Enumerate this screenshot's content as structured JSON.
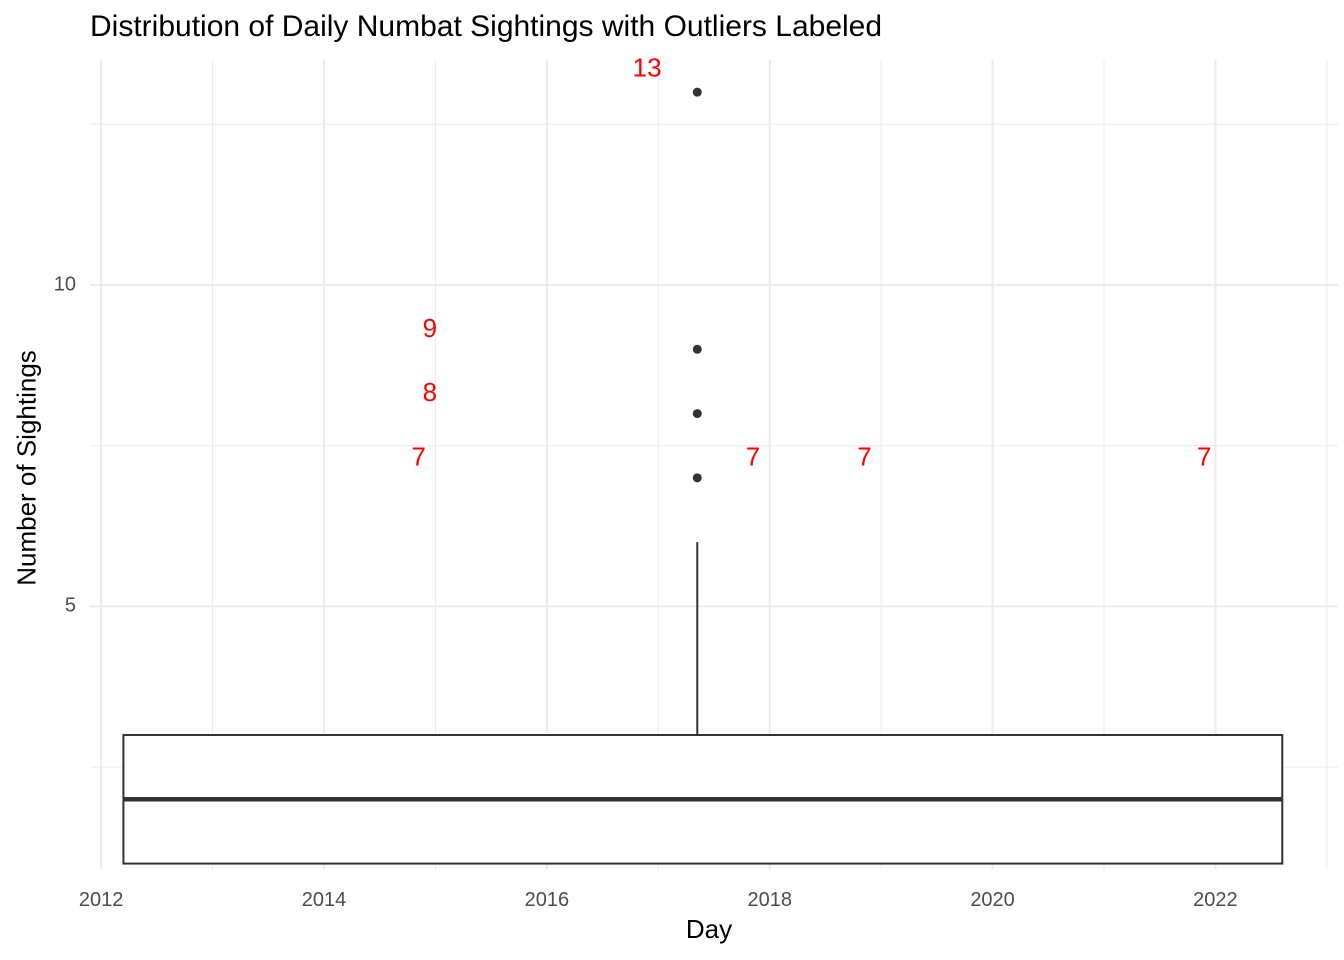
{
  "chart_data": {
    "type": "boxplot",
    "title": "Distribution of Daily Numbat Sightings with Outliers Labeled",
    "xlabel": "Day",
    "ylabel": "Number of Sightings",
    "xlim": [
      2011.9,
      2023.1
    ],
    "ylim": [
      0.9,
      13.5
    ],
    "x_ticks": [
      2012,
      2014,
      2016,
      2018,
      2020,
      2022
    ],
    "x_tick_labels": [
      "2012",
      "2014",
      "2016",
      "2018",
      "2020",
      "2022"
    ],
    "y_ticks": [
      5,
      10
    ],
    "y_tick_labels": [
      "5",
      "10"
    ],
    "box": {
      "x_min": 2012.2,
      "x_max": 2022.6,
      "x_center": 2017.35,
      "lower_quartile": 1,
      "median": 2,
      "upper_quartile": 3,
      "whisker_low": 1,
      "whisker_high": 6
    },
    "outliers": [
      {
        "x": 2017.35,
        "y": 13
      },
      {
        "x": 2017.35,
        "y": 9
      },
      {
        "x": 2017.35,
        "y": 8
      },
      {
        "x": 2017.35,
        "y": 7
      }
    ],
    "outlier_labels": [
      {
        "x": 2016.9,
        "y": 13.35,
        "text": "13"
      },
      {
        "x": 2014.95,
        "y": 9.3,
        "text": "9"
      },
      {
        "x": 2014.95,
        "y": 8.3,
        "text": "8"
      },
      {
        "x": 2014.85,
        "y": 7.3,
        "text": "7"
      },
      {
        "x": 2017.85,
        "y": 7.3,
        "text": "7"
      },
      {
        "x": 2018.85,
        "y": 7.3,
        "text": "7"
      },
      {
        "x": 2021.9,
        "y": 7.3,
        "text": "7"
      }
    ],
    "colors": {
      "grid": "#ebebeb",
      "box_stroke": "#333333",
      "point": "#333333",
      "label": "#ff0000",
      "tick_text": "#4d4d4d"
    }
  }
}
